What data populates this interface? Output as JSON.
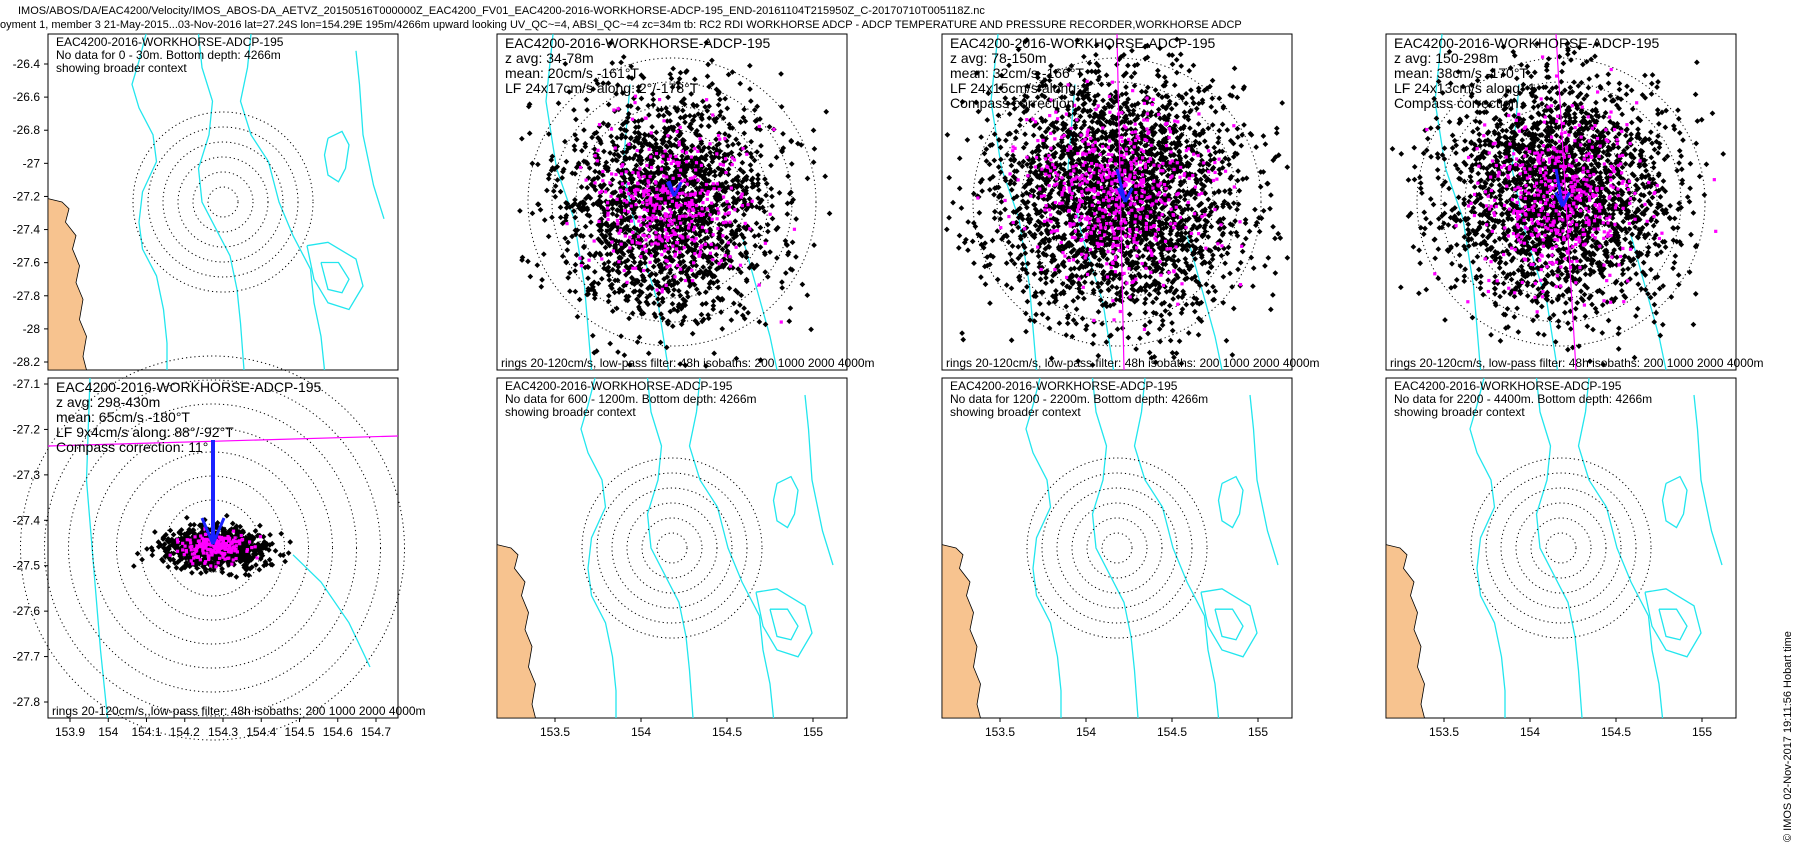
{
  "header": {
    "line1": "IMOS/ABOS/DA/EAC4200/Velocity/IMOS_ABOS-DA_AETVZ_20150516T000000Z_EAC4200_FV01_EAC4200-2016-WORKHORSE-ADCP-195_END-20161104T215950Z_C-20170710T005118Z.nc",
    "line2": "oyment 1, member 3 21-May-2015...03-Nov-2016 lat=27.24S lon=154.29E 195m/4266m upward looking UV_QC~=4, ABSI_QC~=4 zc=34m tb: RC2 RDI WORKHORSE ADCP - ADCP TEMPERATURE AND PRESSURE RECORDER,WORKHORSE ADCP"
  },
  "footer": {
    "context": "rings 20-120cm/s, low-pass filter: 48h isobaths: 200 1000 2000 4000m",
    "context_p5": "rings 20-120cm/s,,low-pass filter: 48h isobaths: 200 1000 2000 4000m"
  },
  "timestamp": "© IMOS 02-Nov-2017 19:11:56 Hobart time",
  "colors": {
    "land": "#f7c38f",
    "isobath": "#22e6ee",
    "scatter_black": "#000000",
    "scatter_magenta": "#ff00ff",
    "arrow": "#1a22ff",
    "rings": "#000000"
  },
  "chart_data": [
    {
      "type": "scatter",
      "panel": 1,
      "title": "EAC4200-2016-WORKHORSE-ADCP-195",
      "lines": [
        "No data for 0 - 30m. Bottom depth: 4266m",
        "showing broader context"
      ],
      "ylim": [
        -28.2,
        -26.3
      ],
      "yticks": [
        "-26.4",
        "-26.6",
        "-26.8",
        "-27",
        "-27.2",
        "-27.4",
        "-27.6",
        "-27.8",
        "-28",
        "-28.2"
      ],
      "has_data": false
    },
    {
      "type": "scatter",
      "panel": 2,
      "title": "EAC4200-2016-WORKHORSE-ADCP-195",
      "lines": [
        "z avg: 34-78m",
        "mean: 20cm/s -161°T",
        "LF 24x17cm/s along: 2°/-178°T"
      ],
      "mean_speed_cms": 20,
      "mean_dir_degT": -161,
      "has_data": true
    },
    {
      "type": "scatter",
      "panel": 3,
      "title": "EAC4200-2016-WORKHORSE-ADCP-195",
      "lines": [
        "z avg: 78-150m",
        "mean: 32cm/s -166°T",
        "LF 24x15cm/s along: 1",
        "Compass correction"
      ],
      "mean_speed_cms": 32,
      "mean_dir_degT": -166,
      "has_data": true
    },
    {
      "type": "scatter",
      "panel": 4,
      "title": "EAC4200-2016-WORKHORSE-ADCP-195",
      "lines": [
        "z avg: 150-298m",
        "mean: 38cm/s -170°T",
        "LF 24x13cm/s along: 1",
        "Compass correction"
      ],
      "mean_speed_cms": 38,
      "mean_dir_degT": -170,
      "has_data": true
    },
    {
      "type": "scatter",
      "panel": 5,
      "title": "EAC4200-2016-WORKHORSE-ADCP-195",
      "lines": [
        "z avg: 298-430m",
        "mean: 65cm/s -180°T",
        "LF 9x4cm/s along: 88°/-92°T",
        "Compass correction: 11°"
      ],
      "mean_speed_cms": 65,
      "mean_dir_degT": -180,
      "has_data": true,
      "ylim": [
        -27.87,
        -27.1
      ],
      "yticks": [
        "-27.1",
        "-27.2",
        "-27.3",
        "-27.4",
        "-27.5",
        "-27.6",
        "-27.7",
        "-27.8"
      ],
      "xlim": [
        153.85,
        154.75
      ],
      "xticks": [
        "153.9",
        "154",
        "154.1",
        "154.2",
        "154.3",
        "154.4",
        "154.5",
        "154.6",
        "154.7"
      ]
    },
    {
      "type": "scatter",
      "panel": 6,
      "title": "EAC4200-2016-WORKHORSE-ADCP-195",
      "lines": [
        "No data for 600 - 1200m. Bottom depth: 4266m",
        "showing broader context"
      ],
      "xticks": [
        "153.5",
        "154",
        "154.5",
        "155"
      ],
      "has_data": false
    },
    {
      "type": "scatter",
      "panel": 7,
      "title": "EAC4200-2016-WORKHORSE-ADCP-195",
      "lines": [
        "No data for 1200 - 2200m. Bottom depth: 4266m",
        "showing broader context"
      ],
      "xticks": [
        "153.5",
        "154",
        "154.5",
        "155"
      ],
      "has_data": false
    },
    {
      "type": "scatter",
      "panel": 8,
      "title": "EAC4200-2016-WORKHORSE-ADCP-195",
      "lines": [
        "No data for 2200 - 4400m. Bottom depth: 4266m",
        "showing broader context"
      ],
      "xticks": [
        "153.5",
        "154",
        "154.5",
        "155"
      ],
      "has_data": false
    }
  ]
}
